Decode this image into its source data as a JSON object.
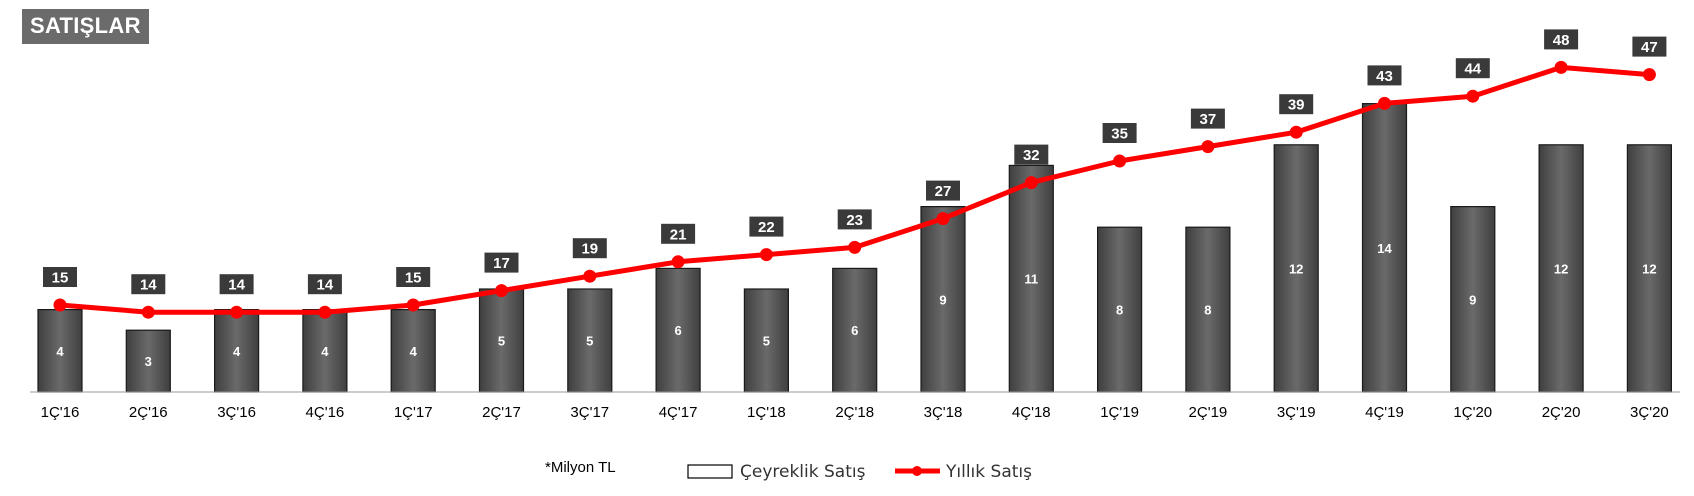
{
  "header": {
    "title": "SATIŞLAR"
  },
  "colors": {
    "bar_fill": "#5c5c5c",
    "line": "#ff0000",
    "label_box": "#3a3a3a"
  },
  "chart_data": {
    "type": "bar",
    "title": "SATIŞLAR",
    "categories": [
      "1Ç'16",
      "2Ç'16",
      "3Ç'16",
      "4Ç'16",
      "1Ç'17",
      "2Ç'17",
      "3Ç'17",
      "4Ç'17",
      "1Ç'18",
      "2Ç'18",
      "3Ç'18",
      "4Ç'18",
      "1Ç'19",
      "2Ç'19",
      "3Ç'19",
      "4Ç'19",
      "1Ç'20",
      "2Ç'20",
      "3Ç'20"
    ],
    "series": [
      {
        "name": "Çeyreklik Satış",
        "type": "bar",
        "values": [
          4,
          3,
          4,
          4,
          4,
          5,
          5,
          6,
          5,
          6,
          9,
          11,
          8,
          8,
          12,
          14,
          9,
          12,
          12
        ]
      },
      {
        "name": "Yıllık Satış",
        "type": "line",
        "values": [
          15,
          14,
          14,
          14,
          15,
          17,
          19,
          21,
          22,
          23,
          27,
          32,
          35,
          37,
          39,
          43,
          44,
          48,
          47
        ]
      }
    ],
    "unit_note": "*Milyon TL",
    "legend": "bottom",
    "grid": false
  }
}
